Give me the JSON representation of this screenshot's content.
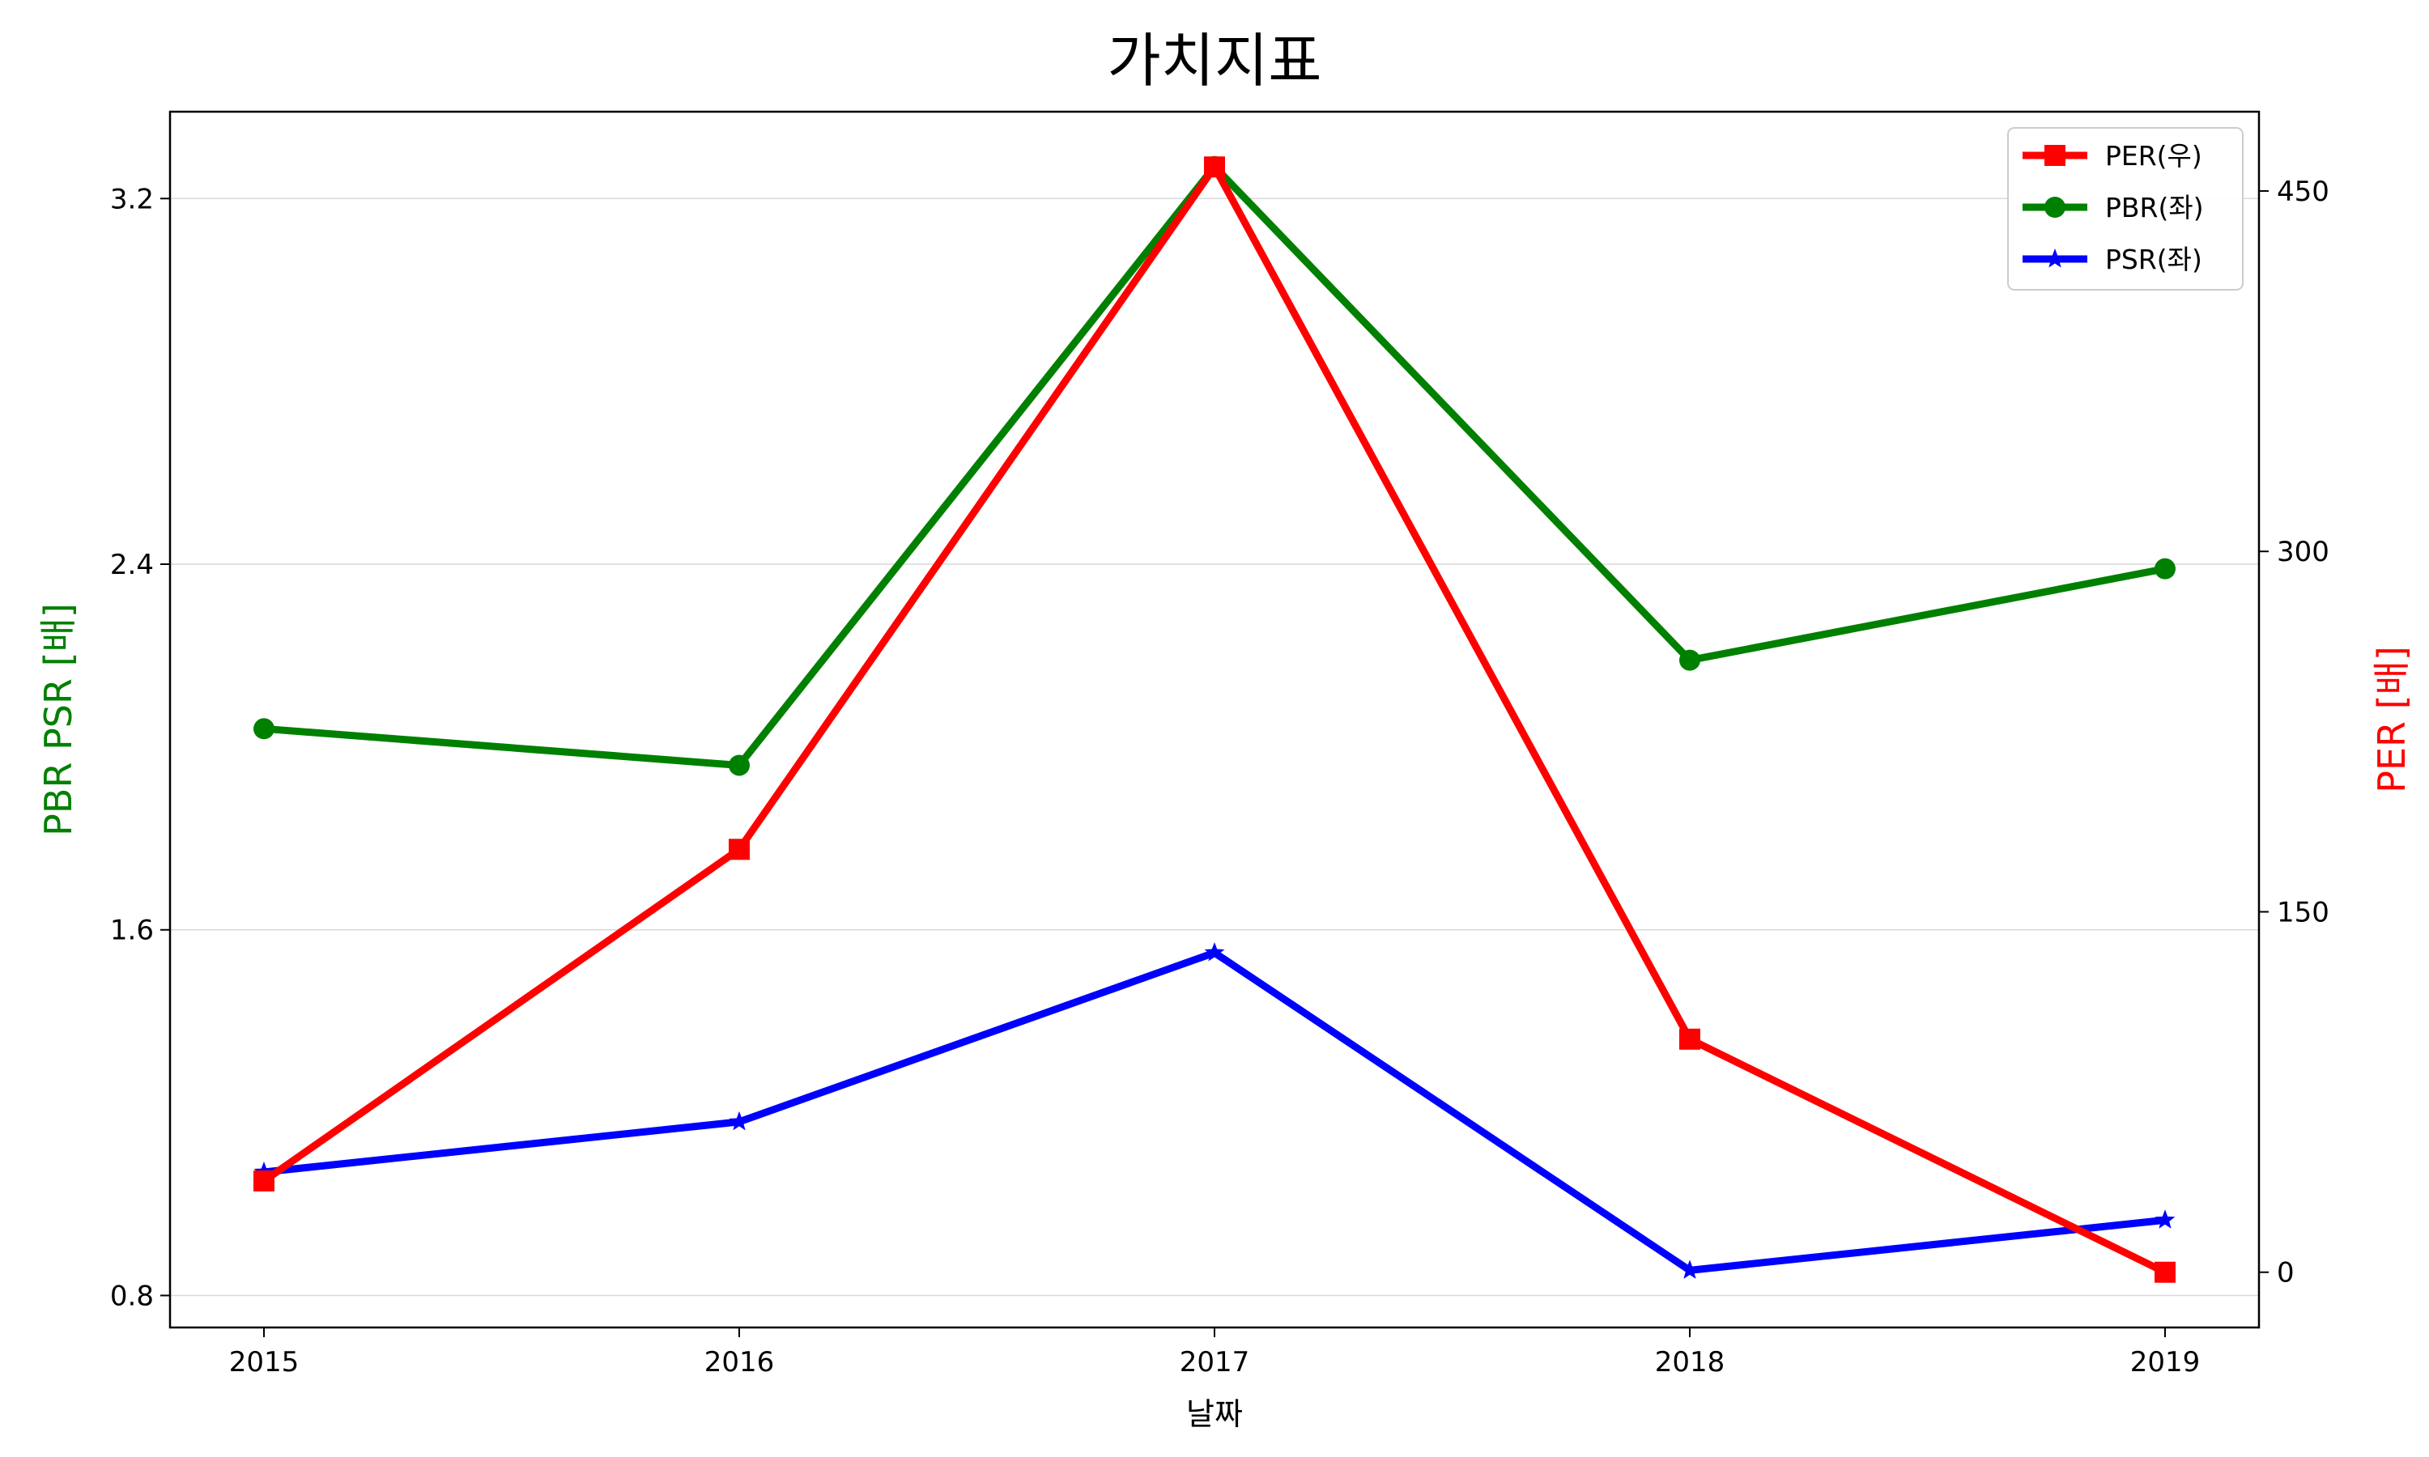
{
  "chart_data": {
    "type": "line",
    "title": "가치지표",
    "xlabel": "날짜",
    "ylabel_left": "PBR PSR [배]",
    "ylabel_right": "PER [배]",
    "x": [
      "2015",
      "2016",
      "2017",
      "2018",
      "2019"
    ],
    "y_left_ticks": [
      "0.8",
      "1.6",
      "2.4",
      "3.2"
    ],
    "y_right_ticks": [
      "0",
      "150",
      "300",
      "450"
    ],
    "ylim_left": [
      0.73,
      3.39
    ],
    "ylim_right": [
      -23,
      483
    ],
    "grid": "horizontal",
    "legend_position": "top-right",
    "series": [
      {
        "name": "PER(우)",
        "axis": "right",
        "color": "#ff0000",
        "marker": "square",
        "values": [
          38,
          176,
          460,
          97,
          0
        ]
      },
      {
        "name": "PBR(좌)",
        "axis": "left",
        "color": "#008000",
        "marker": "circle",
        "values": [
          2.04,
          1.96,
          3.27,
          2.19,
          2.39
        ]
      },
      {
        "name": "PSR(좌)",
        "axis": "left",
        "color": "#0000ff",
        "marker": "star",
        "values": [
          1.07,
          1.18,
          1.55,
          0.855,
          0.965
        ]
      }
    ]
  },
  "colors": {
    "left_axis_label": "#008000",
    "right_axis_label": "#ff0000",
    "grid": "#d9d9d9"
  }
}
